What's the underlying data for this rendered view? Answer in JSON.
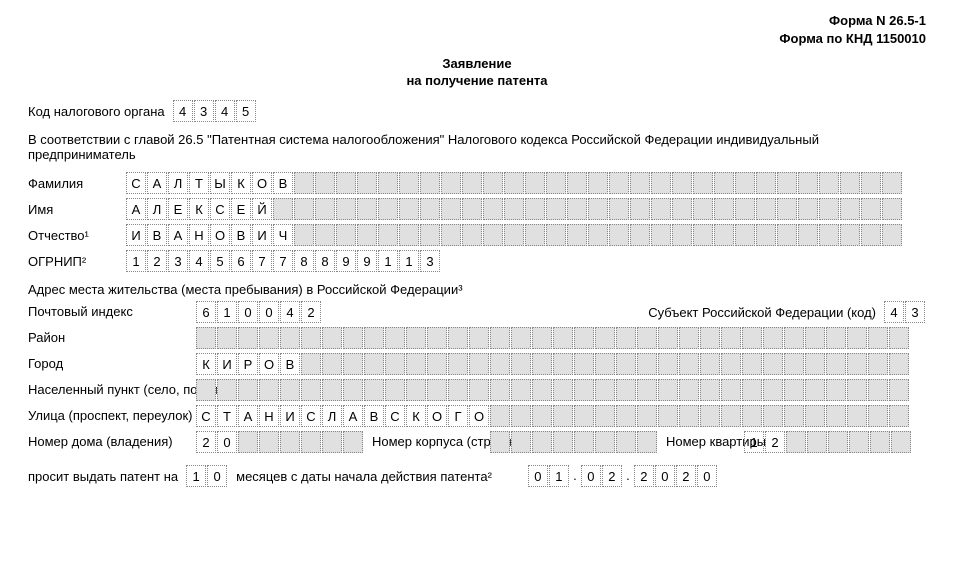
{
  "form_number_1": "Форма N 26.5-1",
  "form_number_2": "Форма по КНД 1150010",
  "title_1": "Заявление",
  "title_2": "на получение патента",
  "tax_code_label": "Код налогового органа",
  "tax_code": [
    "4",
    "3",
    "4",
    "5"
  ],
  "intro": "В соответствии с главой 26.5 \"Патентная система налогообложения\" Налогового кодекса Российской Федерации индивидуальный предприниматель",
  "lastname_label": "Фамилия",
  "firstname_label": "Имя",
  "patronymic_label": "Отчество¹",
  "ogrnip_label": "ОГРНИП²",
  "lastname": [
    "С",
    "А",
    "Л",
    "Т",
    "Ы",
    "К",
    "О",
    "В"
  ],
  "firstname": [
    "А",
    "Л",
    "Е",
    "К",
    "С",
    "Е",
    "Й"
  ],
  "patronymic": [
    "И",
    "В",
    "А",
    "Н",
    "О",
    "В",
    "И",
    "Ч"
  ],
  "ogrnip": [
    "1",
    "2",
    "3",
    "4",
    "5",
    "6",
    "7",
    "7",
    "8",
    "8",
    "9",
    "9",
    "1",
    "1",
    "3"
  ],
  "name_total_cells": 37,
  "address_header": "Адрес места жительства (места пребывания) в Российской Федерации³",
  "postal_label": "Почтовый индекс",
  "postal": [
    "6",
    "1",
    "0",
    "0",
    "4",
    "2"
  ],
  "subject_label": "Субъект Российской Федерации (код)",
  "subject_code": [
    "4",
    "3"
  ],
  "district_label": "Район",
  "city_label": "Город",
  "city": [
    "К",
    "И",
    "Р",
    "О",
    "В"
  ],
  "settlement_label": "Населенный пункт (село, поселок)",
  "street_label": "Улица (проспект, переулок)",
  "street": [
    "С",
    "Т",
    "А",
    "Н",
    "И",
    "С",
    "Л",
    "А",
    "В",
    "С",
    "К",
    "О",
    "Г",
    "О"
  ],
  "addr_total_cells": 34,
  "house_label": "Номер дома (владения)",
  "house": [
    "2",
    "0"
  ],
  "house_cells": 8,
  "korpus_label": "Номер корпуса (строения)",
  "korpus": [],
  "korpus_cells": 8,
  "apt_label": "Номер квартиры",
  "apt": [
    "1",
    "2"
  ],
  "apt_cells": 8,
  "request_prefix": "просит выдать патент на",
  "months": [
    "1",
    "0"
  ],
  "request_mid": "месяцев с даты начала действия патента²",
  "date_d": [
    "0",
    "1"
  ],
  "date_m": [
    "0",
    "2"
  ],
  "date_y": [
    "2",
    "0",
    "2",
    "0"
  ]
}
